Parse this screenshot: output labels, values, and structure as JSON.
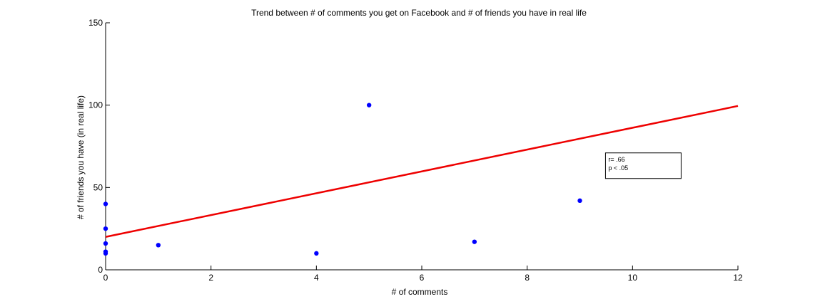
{
  "chart_data": {
    "type": "scatter",
    "title": "Trend between # of comments you get on Facebook and # of friends you have in real life",
    "xlabel": "# of comments",
    "ylabel": "# of friends you have (in real life)",
    "xlim": [
      0,
      12
    ],
    "ylim": [
      0,
      150
    ],
    "xticks": [
      0,
      2,
      4,
      6,
      8,
      10,
      12
    ],
    "yticks": [
      0,
      50,
      100,
      150
    ],
    "grid": false,
    "series": [
      {
        "points": [
          {
            "x": 0,
            "y": 40
          },
          {
            "x": 0,
            "y": 25
          },
          {
            "x": 0,
            "y": 16
          },
          {
            "x": 0,
            "y": 11
          },
          {
            "x": 0,
            "y": 10
          },
          {
            "x": 1,
            "y": 15
          },
          {
            "x": 4,
            "y": 10
          },
          {
            "x": 5,
            "y": 100
          },
          {
            "x": 7,
            "y": 17
          },
          {
            "x": 9,
            "y": 42
          }
        ],
        "color": "#0000ff"
      }
    ],
    "trendline": {
      "x": [
        0,
        12
      ],
      "y": [
        20,
        99.5
      ],
      "color": "#ee0000"
    },
    "annotation": {
      "lines": [
        "r= .66",
        "p < .05"
      ],
      "anchor": {
        "x": 9.5,
        "y": 71
      }
    }
  }
}
